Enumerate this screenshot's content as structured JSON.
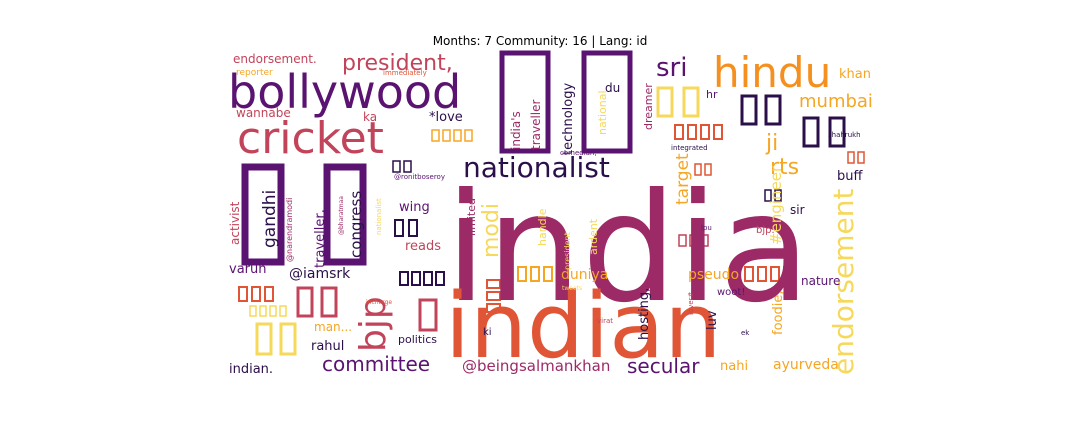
{
  "chart_data": {
    "type": "wordcloud",
    "title": "Months: 7 Community: 16 | Lang: id",
    "words": [
      {
        "text": "india",
        "weight": 100,
        "color": "#9c2a67"
      },
      {
        "text": "indian",
        "weight": 80,
        "color": "#e05535"
      },
      {
        "text": "bollywood",
        "weight": 45,
        "color": "#5a1370"
      },
      {
        "text": "hindu",
        "weight": 38,
        "color": "#f5901e"
      },
      {
        "text": "cricket",
        "weight": 38,
        "color": "#c2445a"
      },
      {
        "text": "nationalist",
        "weight": 26,
        "color": "#2b0f4a"
      },
      {
        "text": "president,",
        "weight": 20,
        "color": "#c2445a"
      },
      {
        "text": "endorsement",
        "weight": 22,
        "color": "#f6d85a"
      },
      {
        "text": "sri",
        "weight": 22,
        "color": "#5a1370"
      },
      {
        "text": "mumbai",
        "weight": 17,
        "color": "#f5a623"
      },
      {
        "text": "modi",
        "weight": 22,
        "color": "#f6d85a"
      },
      {
        "text": "bjp",
        "weight": 30,
        "color": "#c2445a"
      },
      {
        "text": "gandhi",
        "weight": 17,
        "color": "#2b0f4a"
      },
      {
        "text": "congress",
        "weight": 14,
        "color": "#2b0f4a"
      },
      {
        "text": "committee",
        "weight": 18,
        "color": "#5a1370"
      },
      {
        "text": "secular",
        "weight": 17,
        "color": "#5a1370"
      },
      {
        "text": "@beingsalmankhan",
        "weight": 14,
        "color": "#9c2a67"
      },
      {
        "text": "rts",
        "weight": 20,
        "color": "#f5a623"
      },
      {
        "text": "ji",
        "weight": 20,
        "color": "#f5a623"
      },
      {
        "text": "target",
        "weight": 15,
        "color": "#f5a623"
      },
      {
        "text": "#engineer",
        "weight": 14,
        "color": "#f6d85a"
      },
      {
        "text": "duniya",
        "weight": 13,
        "color": "#f5a623"
      },
      {
        "text": "pseudo",
        "weight": 13,
        "color": "#f5a623"
      },
      {
        "text": "ayurveda",
        "weight": 13,
        "color": "#f5a623"
      },
      {
        "text": "nature",
        "weight": 11,
        "color": "#5a1370"
      },
      {
        "text": "buff",
        "weight": 12,
        "color": "#2b0f4a"
      },
      {
        "text": "sir",
        "weight": 11,
        "color": "#2b0f4a"
      },
      {
        "text": "khan",
        "weight": 12,
        "color": "#f5a623"
      },
      {
        "text": "hr",
        "weight": 10,
        "color": "#5a1370"
      },
      {
        "text": "du",
        "weight": 10,
        "color": "#2b0f4a"
      },
      {
        "text": "india's",
        "weight": 11,
        "color": "#9c2a67"
      },
      {
        "text": "traveller",
        "weight": 11,
        "color": "#9c2a67"
      },
      {
        "text": "technology",
        "weight": 11,
        "color": "#2b0f4a"
      },
      {
        "text": "national",
        "weight": 10,
        "color": "#f6d85a"
      },
      {
        "text": "dreamer",
        "weight": 10,
        "color": "#9c2a67"
      },
      {
        "text": "*love",
        "weight": 12,
        "color": "#2b0f4a"
      },
      {
        "text": "ka",
        "weight": 11,
        "color": "#c2445a"
      },
      {
        "text": "wannabe",
        "weight": 11,
        "color": "#c2445a"
      },
      {
        "text": "endorsement.",
        "weight": 11,
        "color": "#c2445a"
      },
      {
        "text": "reporter",
        "weight": 8,
        "color": "#f5a623"
      },
      {
        "text": "immediately",
        "weight": 6,
        "color": "#e05535"
      },
      {
        "text": "activist",
        "weight": 11,
        "color": "#c2445a"
      },
      {
        "text": "@narendramodi",
        "weight": 8,
        "color": "#9c2a67"
      },
      {
        "text": "traveller,",
        "weight": 12,
        "color": "#5a1370"
      },
      {
        "text": "@iamsrk",
        "weight": 13,
        "color": "#2b0f4a"
      },
      {
        "text": "varun",
        "weight": 12,
        "color": "#5a1370"
      },
      {
        "text": "wing",
        "weight": 12,
        "color": "#5a1370"
      },
      {
        "text": "reads",
        "weight": 12,
        "color": "#c2445a"
      },
      {
        "text": "limited",
        "weight": 10,
        "color": "#9c2a67"
      },
      {
        "text": "handle",
        "weight": 10,
        "color": "#f6d85a"
      },
      {
        "text": "ardent",
        "weight": 10,
        "color": "#f6d85a"
      },
      {
        "text": "president",
        "weight": 7,
        "color": "#f6d85a"
      },
      {
        "text": "hosting,",
        "weight": 12,
        "color": "#2b0f4a"
      },
      {
        "text": "luv",
        "weight": 12,
        "color": "#2b0f4a"
      },
      {
        "text": "foodie,",
        "weight": 12,
        "color": "#f5a623"
      },
      {
        "text": "nahi",
        "weight": 12,
        "color": "#f5a623"
      },
      {
        "text": "rahul",
        "weight": 12,
        "color": "#2b0f4a"
      },
      {
        "text": "man...",
        "weight": 11,
        "color": "#f5a623"
      },
      {
        "text": "politics",
        "weight": 10,
        "color": "#2b0f4a"
      },
      {
        "text": "indian.",
        "weight": 12,
        "color": "#2b0f4a"
      },
      {
        "text": "ki",
        "weight": 9,
        "color": "#2b0f4a"
      },
      {
        "text": "woot!",
        "weight": 9,
        "color": "#5a1370"
      },
      {
        "text": "bjp.",
        "weight": 9,
        "color": "#c2445a"
      },
      {
        "text": "lpu",
        "weight": 6,
        "color": "#5a1370"
      },
      {
        "text": "virat",
        "weight": 6,
        "color": "#c2445a"
      },
      {
        "text": "ek",
        "weight": 6,
        "color": "#2b0f4a"
      },
      {
        "text": "lover#",
        "weight": 6,
        "color": "#c2445a"
      },
      {
        "text": "integrated",
        "weight": 6,
        "color": "#2b0f4a"
      },
      {
        "text": "shahrukh",
        "weight": 6,
        "color": "#2b0f4a"
      },
      {
        "text": "comedian,",
        "weight": 6,
        "color": "#5a1370"
      },
      {
        "text": "@ronitboseroy",
        "weight": 6,
        "color": "#5a1370"
      },
      {
        "text": "nationalist",
        "weight": 6,
        "color": "#f6d85a"
      },
      {
        "text": "@bharatmaa",
        "weight": 5,
        "color": "#9c2a67"
      },
      {
        "text": "incharge",
        "weight": 5,
        "color": "#e05535"
      },
      {
        "text": "tweets",
        "weight": 5,
        "color": "#f6d85a"
      }
    ]
  }
}
